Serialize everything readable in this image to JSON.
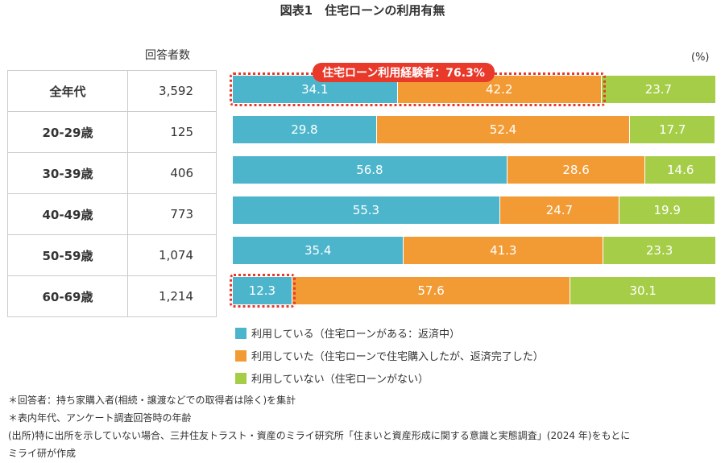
{
  "title": "図表1　住宅ローンの利用有無",
  "respondents_header": "回答者数",
  "unit": "(%)",
  "highlight_label": "住宅ローン利用経験者：76.3%",
  "colors": {
    "using": "#4cb5cb",
    "used": "#f29b34",
    "not_used": "#a5cd48",
    "highlight": "#e8392b"
  },
  "chart_data": {
    "type": "bar",
    "stacked": true,
    "orientation": "horizontal",
    "categories": [
      "全年代",
      "20-29歳",
      "30-39歳",
      "40-49歳",
      "50-59歳",
      "60-69歳"
    ],
    "respondents": [
      "3,592",
      "125",
      "406",
      "773",
      "1,074",
      "1,214"
    ],
    "series": [
      {
        "name": "利用している（住宅ローンがある：返済中）",
        "values": [
          34.1,
          29.8,
          56.8,
          55.3,
          35.4,
          12.3
        ]
      },
      {
        "name": "利用していた（住宅ローンで住宅購入したが、返済完了した）",
        "values": [
          42.2,
          52.4,
          28.6,
          24.7,
          41.3,
          57.6
        ]
      },
      {
        "name": "利用していない（住宅ローンがない）",
        "values": [
          23.7,
          17.7,
          14.6,
          19.9,
          23.3,
          30.1
        ]
      }
    ],
    "xlim": [
      0,
      100
    ],
    "legend": "bottom"
  },
  "notes": [
    "＊回答者：持ち家購入者(相続・譲渡などでの取得者は除く)を集計",
    "＊表内年代、アンケート調査回答時の年齢",
    "(出所)特に出所を示していない場合、三井住友トラスト・資産のミライ研究所「住まいと資産形成に関する意識と実態調査」(2024 年)をもとに",
    "ミライ研が作成"
  ]
}
